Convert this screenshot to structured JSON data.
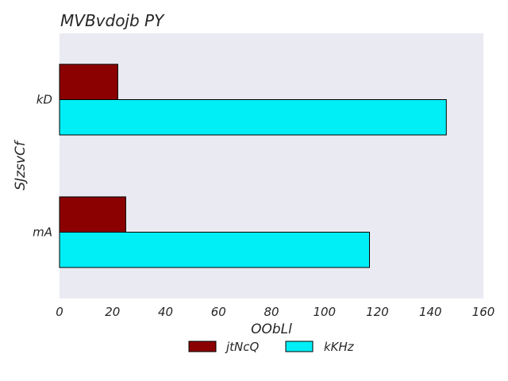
{
  "chart_data": {
    "type": "bar",
    "orientation": "horizontal",
    "title": "MVBvdojb PY",
    "xlabel": "OObLl",
    "ylabel": "SJzsvCf",
    "categories": [
      "mA",
      "kD"
    ],
    "series": [
      {
        "name": "jtNcQ",
        "color": "#8b0000",
        "values": [
          25,
          22
        ]
      },
      {
        "name": "kKHz",
        "color": "#00eef6",
        "values": [
          117,
          146
        ]
      }
    ],
    "xlim": [
      0,
      160
    ],
    "xticks": [
      0,
      20,
      40,
      60,
      80,
      100,
      120,
      140,
      160
    ],
    "grid": false,
    "legend_position": "bottom-center",
    "background_color": "#eaeaf2"
  }
}
